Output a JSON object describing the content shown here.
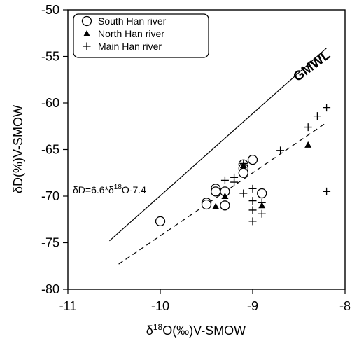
{
  "chart_data": {
    "type": "scatter",
    "xlabel_prefix": "δ",
    "xlabel_sup": "18",
    "xlabel_suffix": "O(‰)V-SMOW",
    "ylabel": "δD(%)V-SMOW",
    "xlim": [
      -11,
      -8
    ],
    "ylim": [
      -80,
      -50
    ],
    "x_ticks": [
      -11,
      -10,
      -9,
      -8
    ],
    "y_ticks": [
      -80,
      -75,
      -70,
      -65,
      -60,
      -55,
      -50
    ],
    "x_tick_labels": [
      "-11",
      "-10",
      "-9",
      "-8"
    ],
    "y_tick_labels": [
      "-80",
      "-75",
      "-70",
      "-65",
      "-60",
      "-55",
      "-50"
    ],
    "legend_position": "top-left",
    "series": [
      {
        "name": "South Han river",
        "marker": "circle",
        "points": [
          [
            -10.0,
            -72.7
          ],
          [
            -9.5,
            -70.7
          ],
          [
            -9.5,
            -70.9
          ],
          [
            -9.4,
            -69.2
          ],
          [
            -9.4,
            -69.5
          ],
          [
            -9.3,
            -69.5
          ],
          [
            -9.3,
            -71.0
          ],
          [
            -9.1,
            -66.6
          ],
          [
            -9.1,
            -67.0
          ],
          [
            -9.1,
            -67.5
          ],
          [
            -9.0,
            -66.1
          ],
          [
            -8.9,
            -69.7
          ]
        ]
      },
      {
        "name": "North Han river",
        "marker": "triangle",
        "points": [
          [
            -9.4,
            -71.1
          ],
          [
            -9.3,
            -70.0
          ],
          [
            -9.1,
            -66.7
          ],
          [
            -8.9,
            -71.0
          ],
          [
            -8.4,
            -64.5
          ]
        ]
      },
      {
        "name": "Main Han river",
        "marker": "plus",
        "points": [
          [
            -9.3,
            -68.3
          ],
          [
            -9.2,
            -68.5
          ],
          [
            -9.2,
            -68.0
          ],
          [
            -9.1,
            -66.5
          ],
          [
            -9.1,
            -69.7
          ],
          [
            -9.0,
            -69.2
          ],
          [
            -9.0,
            -70.5
          ],
          [
            -9.0,
            -71.5
          ],
          [
            -9.0,
            -72.7
          ],
          [
            -8.9,
            -70.7
          ],
          [
            -8.9,
            -71.9
          ],
          [
            -8.7,
            -65.1
          ],
          [
            -8.4,
            -62.6
          ],
          [
            -8.3,
            -61.4
          ],
          [
            -8.2,
            -60.5
          ],
          [
            -8.2,
            -69.5
          ]
        ]
      }
    ],
    "lines": [
      {
        "name": "GMWL",
        "style": "solid",
        "x1": -10.55,
        "y1": -74.8,
        "x2": -8.2,
        "y2": -54.1,
        "label": "GMWL"
      },
      {
        "name": "regression",
        "style": "dashed",
        "x1": -10.45,
        "y1": -77.3,
        "x2": -8.2,
        "y2": -62.1
      }
    ],
    "annotation": {
      "prefix": "δD=6.6*δ",
      "sup": "18",
      "suffix": "O-7.4"
    }
  }
}
